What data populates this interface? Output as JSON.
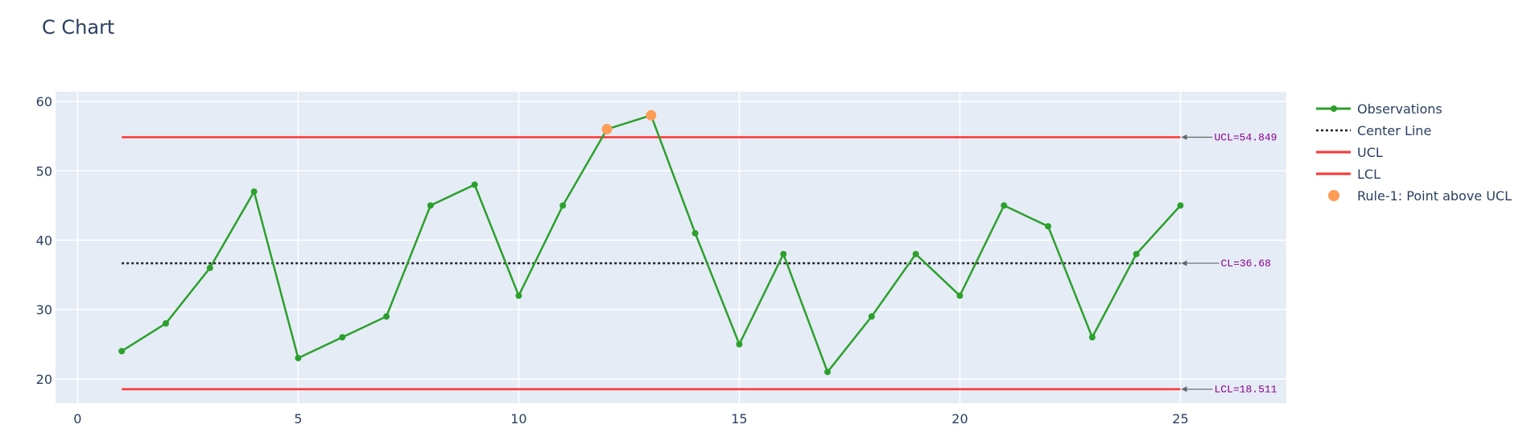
{
  "chart_data": {
    "type": "line",
    "title": "C Chart",
    "xlabel": "",
    "ylabel": "",
    "xlim": [
      -0.5,
      27.4
    ],
    "ylim": [
      16.5,
      61.4
    ],
    "xticks": [
      0,
      5,
      10,
      15,
      20,
      25
    ],
    "yticks": [
      20,
      30,
      40,
      50,
      60
    ],
    "grid": true,
    "legend_position": "right",
    "x": [
      1,
      2,
      3,
      4,
      5,
      6,
      7,
      8,
      9,
      10,
      11,
      12,
      13,
      14,
      15,
      16,
      17,
      18,
      19,
      20,
      21,
      22,
      23,
      24,
      25
    ],
    "series": [
      {
        "name": "Observations",
        "color": "#2ca02c",
        "style": "lines+markers",
        "values": [
          24,
          28,
          36,
          47,
          23,
          26,
          29,
          45,
          48,
          32,
          45,
          56,
          58,
          41,
          25,
          38,
          21,
          29,
          38,
          32,
          45,
          42,
          26,
          38,
          45
        ]
      },
      {
        "name": "Center Line",
        "color": "#222222",
        "style": "dotted",
        "value": 36.68
      },
      {
        "name": "UCL",
        "color": "#ff3333",
        "style": "solid",
        "value": 54.849
      },
      {
        "name": "LCL",
        "color": "#ff3333",
        "style": "solid",
        "value": 18.511
      },
      {
        "name": "Rule-1: Point above UCL",
        "color": "#ff9d57",
        "style": "markers",
        "points": [
          {
            "x": 12,
            "y": 56
          },
          {
            "x": 13,
            "y": 58
          }
        ]
      }
    ],
    "annotations": [
      {
        "text": "UCL=54.849",
        "x": 25,
        "y": 54.849
      },
      {
        "text": "CL=36.68",
        "x": 25,
        "y": 36.68
      },
      {
        "text": "LCL=18.511",
        "x": 25,
        "y": 18.511
      }
    ]
  }
}
